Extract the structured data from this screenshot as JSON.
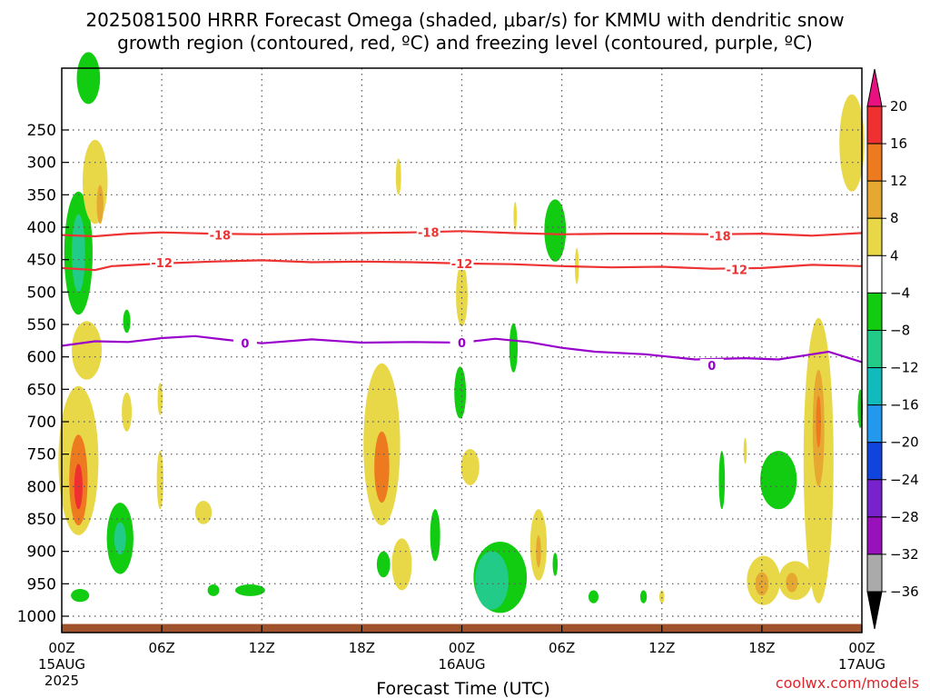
{
  "title_line1": "2025081500 HRRR Forecast Omega (shaded, μbar/s) for KMMU with dendritic snow",
  "title_line2": "growth region (contoured, red, ºC) and freezing level (contoured, purple, ºC)",
  "credit": "coolwx.com/models",
  "colors": {
    "ground": "#a0522d",
    "dendritic": "#ee3333",
    "freezing": "#9900cc",
    "grid": "#555555"
  },
  "chart_data": {
    "type": "heatmap",
    "xlabel": "Forecast Time (UTC)",
    "ylabel": "",
    "x_range_hours": [
      0,
      48
    ],
    "y_range_hpa": [
      1025,
      190
    ],
    "y_ticks": [
      250,
      300,
      350,
      400,
      450,
      500,
      550,
      600,
      650,
      700,
      750,
      800,
      850,
      900,
      950,
      1000
    ],
    "x_ticks": [
      {
        "h": 0,
        "label": "00Z",
        "sub1": "15AUG",
        "sub2": "2025"
      },
      {
        "h": 6,
        "label": "06Z",
        "sub1": "",
        "sub2": ""
      },
      {
        "h": 12,
        "label": "12Z",
        "sub1": "",
        "sub2": ""
      },
      {
        "h": 18,
        "label": "18Z",
        "sub1": "",
        "sub2": ""
      },
      {
        "h": 24,
        "label": "00Z",
        "sub1": "16AUG",
        "sub2": ""
      },
      {
        "h": 30,
        "label": "06Z",
        "sub1": "",
        "sub2": ""
      },
      {
        "h": 36,
        "label": "12Z",
        "sub1": "",
        "sub2": ""
      },
      {
        "h": 42,
        "label": "18Z",
        "sub1": "",
        "sub2": ""
      },
      {
        "h": 48,
        "label": "00Z",
        "sub1": "17AUG",
        "sub2": ""
      }
    ],
    "colorbar": {
      "levels": [
        20,
        16,
        12,
        8,
        4,
        -4,
        -8,
        -12,
        -16,
        -20,
        -24,
        -28,
        -32,
        -36
      ],
      "colors": [
        "#ee3030",
        "#ee7a20",
        "#e6a830",
        "#e8d848",
        "#ffffff",
        "#11cc11",
        "#22cc88",
        "#11bbbb",
        "#2299ee",
        "#1144dd",
        "#7722cc",
        "#9911bb",
        "#aaaaaa"
      ],
      "top_color": "#e8117f",
      "bottom_color": "#000000"
    },
    "series": [
      {
        "name": "-18",
        "color": "#ee3333",
        "points": [
          [
            0,
            412
          ],
          [
            2,
            414
          ],
          [
            4,
            410
          ],
          [
            6,
            408
          ],
          [
            9,
            410
          ],
          [
            12,
            411
          ],
          [
            15,
            410
          ],
          [
            18,
            409
          ],
          [
            21,
            408
          ],
          [
            24,
            406
          ],
          [
            27,
            409
          ],
          [
            30,
            411
          ],
          [
            33,
            410
          ],
          [
            36,
            410
          ],
          [
            39,
            411
          ],
          [
            42,
            410
          ],
          [
            45,
            413
          ],
          [
            48,
            409
          ]
        ],
        "labels": [
          [
            9.5,
            412
          ],
          [
            22,
            408
          ],
          [
            39.5,
            413
          ]
        ]
      },
      {
        "name": "-12",
        "color": "#ee3333",
        "points": [
          [
            0,
            463
          ],
          [
            2,
            466
          ],
          [
            3,
            460
          ],
          [
            6,
            456
          ],
          [
            9,
            453
          ],
          [
            12,
            451
          ],
          [
            15,
            454
          ],
          [
            18,
            453
          ],
          [
            21,
            454
          ],
          [
            24,
            456
          ],
          [
            27,
            457
          ],
          [
            30,
            460
          ],
          [
            33,
            462
          ],
          [
            36,
            461
          ],
          [
            39,
            464
          ],
          [
            42,
            463
          ],
          [
            45,
            458
          ],
          [
            48,
            460
          ]
        ],
        "labels": [
          [
            6,
            455
          ],
          [
            24,
            456
          ],
          [
            40.5,
            465
          ]
        ]
      },
      {
        "name": "0",
        "color": "#9900cc",
        "points": [
          [
            0,
            583
          ],
          [
            2,
            576
          ],
          [
            4,
            577
          ],
          [
            6,
            571
          ],
          [
            8,
            568
          ],
          [
            10,
            574
          ],
          [
            12,
            579
          ],
          [
            15,
            573
          ],
          [
            18,
            578
          ],
          [
            21,
            577
          ],
          [
            24,
            578
          ],
          [
            26,
            572
          ],
          [
            28,
            577
          ],
          [
            30,
            586
          ],
          [
            32,
            592
          ],
          [
            35,
            596
          ],
          [
            38,
            604
          ],
          [
            41,
            602
          ],
          [
            43,
            604
          ],
          [
            46,
            592
          ],
          [
            48,
            608
          ]
        ],
        "labels": [
          [
            11,
            579
          ],
          [
            24,
            578
          ],
          [
            39,
            613
          ]
        ]
      }
    ],
    "regions": [
      {
        "cx": 1.6,
        "cy": 170,
        "rx": 0.7,
        "ry": 40,
        "fill": "#11cc11"
      },
      {
        "cx": 1.0,
        "cy": 440,
        "rx": 0.85,
        "ry": 95,
        "fill": "#11cc11"
      },
      {
        "cx": 1.0,
        "cy": 440,
        "rx": 0.4,
        "ry": 60,
        "fill": "#22cc88"
      },
      {
        "cx": 2.0,
        "cy": 330,
        "rx": 0.75,
        "ry": 65,
        "fill": "#e8d848"
      },
      {
        "cx": 2.3,
        "cy": 365,
        "rx": 0.2,
        "ry": 30,
        "fill": "#e6a830"
      },
      {
        "cx": 1.5,
        "cy": 590,
        "rx": 0.9,
        "ry": 45,
        "fill": "#e8d848"
      },
      {
        "cx": 1.0,
        "cy": 760,
        "rx": 1.2,
        "ry": 115,
        "fill": "#e8d848"
      },
      {
        "cx": 1.0,
        "cy": 790,
        "rx": 0.55,
        "ry": 70,
        "fill": "#ee7a20"
      },
      {
        "cx": 1.0,
        "cy": 800,
        "rx": 0.25,
        "ry": 35,
        "fill": "#ee3030"
      },
      {
        "cx": 1.1,
        "cy": 968,
        "rx": 0.55,
        "ry": 10,
        "fill": "#11cc11"
      },
      {
        "cx": 3.5,
        "cy": 880,
        "rx": 0.8,
        "ry": 55,
        "fill": "#11cc11"
      },
      {
        "cx": 3.5,
        "cy": 880,
        "rx": 0.35,
        "ry": 25,
        "fill": "#22cc88"
      },
      {
        "cx": 3.9,
        "cy": 545,
        "rx": 0.22,
        "ry": 18,
        "fill": "#11cc11"
      },
      {
        "cx": 3.9,
        "cy": 685,
        "rx": 0.3,
        "ry": 30,
        "fill": "#e8d848"
      },
      {
        "cx": 5.9,
        "cy": 665,
        "rx": 0.15,
        "ry": 25,
        "fill": "#e8d848"
      },
      {
        "cx": 5.9,
        "cy": 790,
        "rx": 0.2,
        "ry": 45,
        "fill": "#e8d848"
      },
      {
        "cx": 8.5,
        "cy": 840,
        "rx": 0.5,
        "ry": 18,
        "fill": "#e8d848"
      },
      {
        "cx": 9.1,
        "cy": 960,
        "rx": 0.35,
        "ry": 9,
        "fill": "#11cc11"
      },
      {
        "cx": 11.3,
        "cy": 960,
        "rx": 0.9,
        "ry": 9,
        "fill": "#11cc11"
      },
      {
        "cx": 19.2,
        "cy": 735,
        "rx": 1.1,
        "ry": 125,
        "fill": "#e8d848"
      },
      {
        "cx": 19.2,
        "cy": 770,
        "rx": 0.45,
        "ry": 55,
        "fill": "#ee7a20"
      },
      {
        "cx": 19.3,
        "cy": 920,
        "rx": 0.4,
        "ry": 20,
        "fill": "#11cc11"
      },
      {
        "cx": 20.4,
        "cy": 920,
        "rx": 0.6,
        "ry": 40,
        "fill": "#e8d848"
      },
      {
        "cx": 20.2,
        "cy": 322,
        "rx": 0.16,
        "ry": 28,
        "fill": "#e8d848"
      },
      {
        "cx": 24.0,
        "cy": 505,
        "rx": 0.35,
        "ry": 48,
        "fill": "#e8d848"
      },
      {
        "cx": 23.9,
        "cy": 655,
        "rx": 0.35,
        "ry": 40,
        "fill": "#11cc11"
      },
      {
        "cx": 24.5,
        "cy": 770,
        "rx": 0.55,
        "ry": 28,
        "fill": "#e8d848"
      },
      {
        "cx": 22.4,
        "cy": 875,
        "rx": 0.3,
        "ry": 40,
        "fill": "#11cc11"
      },
      {
        "cx": 26.3,
        "cy": 940,
        "rx": 1.6,
        "ry": 55,
        "fill": "#11cc11"
      },
      {
        "cx": 25.8,
        "cy": 945,
        "rx": 1.0,
        "ry": 45,
        "fill": "#22cc88"
      },
      {
        "cx": 28.6,
        "cy": 890,
        "rx": 0.5,
        "ry": 55,
        "fill": "#e8d848"
      },
      {
        "cx": 28.6,
        "cy": 900,
        "rx": 0.15,
        "ry": 25,
        "fill": "#e6a830"
      },
      {
        "cx": 29.6,
        "cy": 920,
        "rx": 0.15,
        "ry": 18,
        "fill": "#11cc11"
      },
      {
        "cx": 27.1,
        "cy": 586,
        "rx": 0.25,
        "ry": 38,
        "fill": "#11cc11"
      },
      {
        "cx": 29.6,
        "cy": 405,
        "rx": 0.65,
        "ry": 48,
        "fill": "#11cc11"
      },
      {
        "cx": 30.9,
        "cy": 460,
        "rx": 0.12,
        "ry": 28,
        "fill": "#e8d848"
      },
      {
        "cx": 27.2,
        "cy": 383,
        "rx": 0.1,
        "ry": 22,
        "fill": "#e8d848"
      },
      {
        "cx": 31.9,
        "cy": 970,
        "rx": 0.3,
        "ry": 10,
        "fill": "#11cc11"
      },
      {
        "cx": 34.9,
        "cy": 970,
        "rx": 0.2,
        "ry": 10,
        "fill": "#11cc11"
      },
      {
        "cx": 36.0,
        "cy": 970,
        "rx": 0.15,
        "ry": 10,
        "fill": "#e8d848"
      },
      {
        "cx": 39.6,
        "cy": 790,
        "rx": 0.18,
        "ry": 45,
        "fill": "#11cc11"
      },
      {
        "cx": 41.0,
        "cy": 745,
        "rx": 0.1,
        "ry": 20,
        "fill": "#e8d848"
      },
      {
        "cx": 43.0,
        "cy": 790,
        "rx": 1.1,
        "ry": 45,
        "fill": "#11cc11"
      },
      {
        "cx": 42.1,
        "cy": 945,
        "rx": 1.0,
        "ry": 38,
        "fill": "#e8d848"
      },
      {
        "cx": 42.0,
        "cy": 950,
        "rx": 0.4,
        "ry": 18,
        "fill": "#e6a830"
      },
      {
        "cx": 44.0,
        "cy": 945,
        "rx": 1.0,
        "ry": 30,
        "fill": "#e8d848"
      },
      {
        "cx": 43.8,
        "cy": 948,
        "rx": 0.35,
        "ry": 15,
        "fill": "#e6a830"
      },
      {
        "cx": 45.4,
        "cy": 760,
        "rx": 0.9,
        "ry": 220,
        "fill": "#e8d848"
      },
      {
        "cx": 45.4,
        "cy": 710,
        "rx": 0.35,
        "ry": 90,
        "fill": "#e6a830"
      },
      {
        "cx": 45.4,
        "cy": 700,
        "rx": 0.15,
        "ry": 40,
        "fill": "#ee7a20"
      },
      {
        "cx": 47.9,
        "cy": 680,
        "rx": 0.15,
        "ry": 30,
        "fill": "#11cc11"
      },
      {
        "cx": 47.4,
        "cy": 270,
        "rx": 0.75,
        "ry": 75,
        "fill": "#e8d848"
      }
    ],
    "ground_top_hpa": 1012
  }
}
